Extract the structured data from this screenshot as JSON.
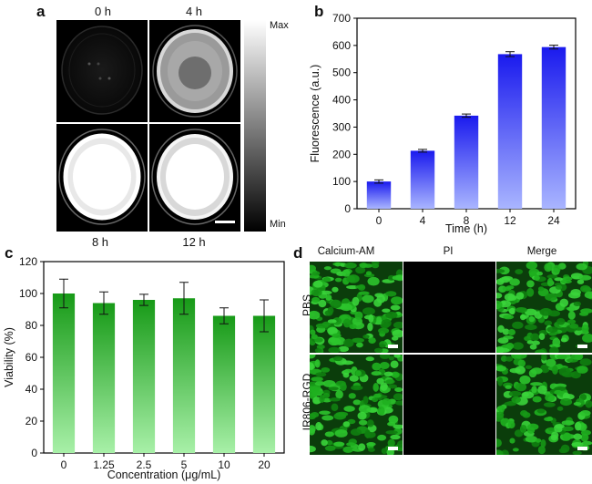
{
  "panels": {
    "a": {
      "letter": "a",
      "time_labels": [
        "0 h",
        "4 h",
        "8 h",
        "12 h"
      ],
      "colorbar_max": "Max",
      "colorbar_min": "Min"
    },
    "b": {
      "letter": "b"
    },
    "c": {
      "letter": "c"
    },
    "d": {
      "letter": "d",
      "column_labels": [
        "Calcium-AM",
        "PI",
        "Merge"
      ],
      "row_labels": [
        "PBS",
        "IR806-RGD"
      ]
    }
  },
  "colors": {
    "bar_b_top": "#1a1aee",
    "bar_b_bottom": "#a9b5ff",
    "bar_c_top": "#179a17",
    "bar_c_bottom": "#a8f0a8",
    "confocal_green": "#1fb01f"
  },
  "chart_data": [
    {
      "panel": "b",
      "type": "bar",
      "categories": [
        "0",
        "4",
        "8",
        "12",
        "24"
      ],
      "values": [
        100,
        213,
        342,
        568,
        594
      ],
      "errors": [
        6,
        5,
        6,
        9,
        7
      ],
      "title": "",
      "xlabel": "Time (h)",
      "ylabel": "Fluorescence (a.u.)",
      "ylim": [
        0,
        700
      ],
      "yticks": [
        "0",
        "100",
        "200",
        "300",
        "400",
        "500",
        "600",
        "700"
      ],
      "grid": false
    },
    {
      "panel": "c",
      "type": "bar",
      "categories": [
        "0",
        "1.25",
        "2.5",
        "5",
        "10",
        "20"
      ],
      "values": [
        100,
        94,
        96,
        97,
        86,
        86
      ],
      "errors": [
        9,
        7,
        3.5,
        10,
        5,
        10
      ],
      "title": "",
      "xlabel": "Concentration (μg/mL)",
      "ylabel": "Viability (%)",
      "ylim": [
        0,
        120
      ],
      "yticks": [
        "0",
        "20",
        "40",
        "60",
        "80",
        "100",
        "120"
      ],
      "grid": false
    }
  ]
}
